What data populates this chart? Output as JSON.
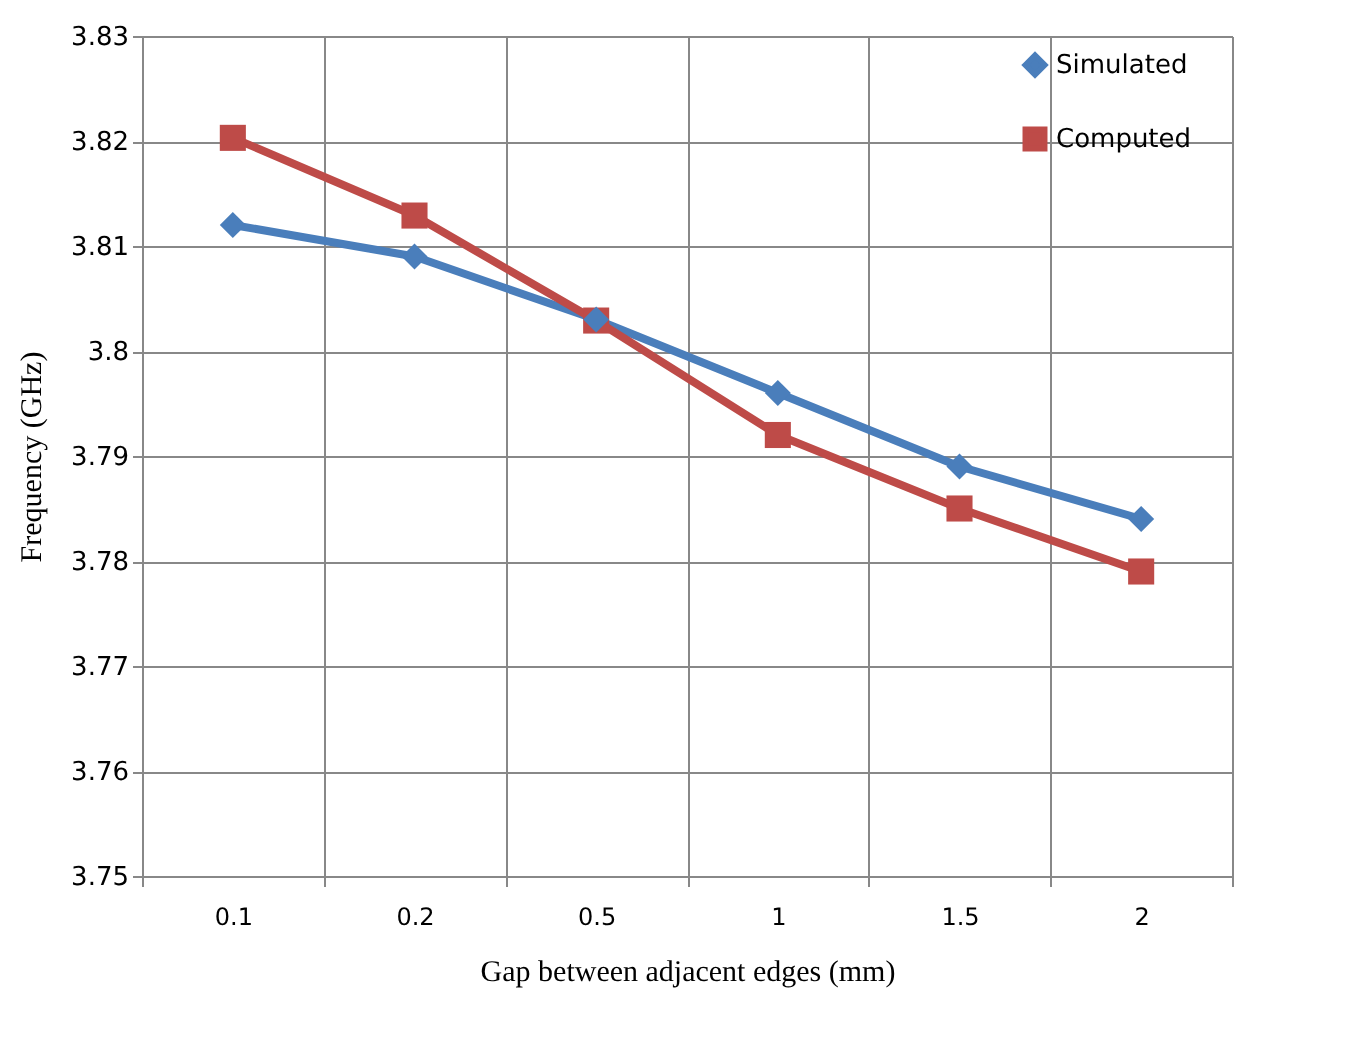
{
  "chart_data": {
    "type": "line",
    "xlabel": "Gap between adjacent edges (mm)",
    "ylabel": "Frequency (GHz)",
    "categories": [
      "0.1",
      "0.2",
      "0.5",
      "1",
      "1.5",
      "2"
    ],
    "series": [
      {
        "name": "Simulated",
        "color": "#4a7ebb",
        "marker": "diamond",
        "values": [
          3.812,
          3.809,
          3.803,
          3.796,
          3.789,
          3.784
        ]
      },
      {
        "name": "Computed",
        "color": "#be4b48",
        "marker": "square",
        "values": [
          3.8203,
          3.8129,
          3.8029,
          3.792,
          3.785,
          3.779
        ]
      }
    ],
    "ylim": [
      3.75,
      3.83
    ],
    "yticks": [
      3.75,
      3.76,
      3.77,
      3.78,
      3.79,
      3.8,
      3.81,
      3.82,
      3.83
    ],
    "grid": true,
    "legend": "top right",
    "line_style": "solid"
  }
}
